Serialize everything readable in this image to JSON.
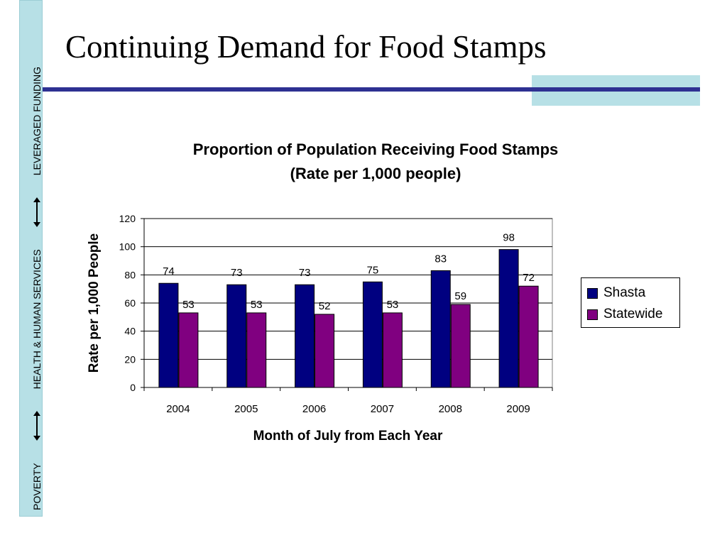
{
  "slide": {
    "title": "Continuing Demand for Food Stamps",
    "sidebar": {
      "item1": "POVERTY",
      "item2": "HEALTH & HUMAN SERVICES",
      "item3": "LEVERAGED FUNDING"
    }
  },
  "colors": {
    "rule": "#2e3192",
    "accent": "#b7e0e6",
    "shasta": "#000080",
    "statewide": "#800080"
  },
  "chart_data": {
    "type": "bar",
    "title": "Proportion of Population Receiving Food Stamps",
    "subtitle": "(Rate per 1,000 people)",
    "xlabel": "Month of July from Each Year",
    "ylabel": "Rate per 1,000 People",
    "categories": [
      "2004",
      "2005",
      "2006",
      "2007",
      "2008",
      "2009"
    ],
    "series": [
      {
        "name": "Shasta",
        "values": [
          74,
          73,
          73,
          75,
          83,
          98
        ],
        "color": "#000080"
      },
      {
        "name": "Statewide",
        "values": [
          53,
          53,
          52,
          53,
          59,
          72
        ],
        "color": "#800080"
      }
    ],
    "ylim": [
      0,
      120
    ],
    "yticks": [
      0,
      20,
      40,
      60,
      80,
      100,
      120
    ],
    "grid": true,
    "legend": "right"
  }
}
